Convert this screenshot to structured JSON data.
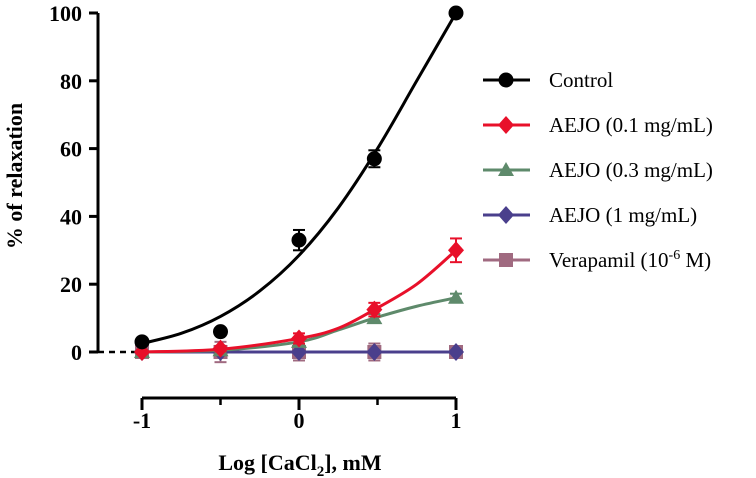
{
  "chart_data": {
    "type": "line",
    "title": "",
    "xlabel": "Log [CaCl2], mM",
    "xlabel_main": "Log [CaCl",
    "xlabel_sub": "2",
    "xlabel_tail": "], mM",
    "ylabel": "% of relaxation",
    "xlim": [
      -1,
      1
    ],
    "ylim": [
      0,
      100
    ],
    "xticks": [
      -1,
      0,
      1
    ],
    "xtick_labels": [
      "-1",
      "0",
      "1"
    ],
    "xminor": [
      -0.5,
      0.5
    ],
    "yticks": [
      0,
      20,
      40,
      60,
      80,
      100
    ],
    "ytick_labels": [
      "0",
      "20",
      "40",
      "60",
      "80",
      "100"
    ],
    "grid": false,
    "legend_position": "right",
    "series": [
      {
        "name": "Control",
        "color": "#000000",
        "marker": "circle",
        "x": [
          -1,
          -0.5,
          0,
          0.48,
          1
        ],
        "y": [
          3,
          6,
          33,
          57,
          100
        ],
        "err": [
          0.8,
          1,
          3,
          2.5,
          0.5
        ],
        "fit": [
          [
            -1,
            2.5
          ],
          [
            -0.75,
            5.5
          ],
          [
            -0.5,
            10.5
          ],
          [
            -0.25,
            18
          ],
          [
            0,
            28.5
          ],
          [
            0.25,
            42.5
          ],
          [
            0.5,
            60
          ],
          [
            0.75,
            80
          ],
          [
            1,
            100
          ]
        ]
      },
      {
        "name": "AEJO (0.1 mg/mL)",
        "color": "#e8102a",
        "marker": "diamond",
        "x": [
          -1,
          -0.5,
          0,
          0.48,
          1
        ],
        "y": [
          0,
          1,
          4,
          12.5,
          30
        ],
        "err": [
          0.5,
          0.8,
          1.5,
          2,
          3.5
        ],
        "fit": [
          [
            -1,
            0
          ],
          [
            -0.5,
            0.8
          ],
          [
            0,
            4
          ],
          [
            0.25,
            7
          ],
          [
            0.48,
            12.5
          ],
          [
            0.75,
            20
          ],
          [
            1,
            30
          ]
        ]
      },
      {
        "name": "AEJO (0.3 mg/mL)",
        "color": "#5e8a6b",
        "marker": "triangle",
        "x": [
          -1,
          -0.5,
          0,
          0.48,
          1
        ],
        "y": [
          0,
          0.5,
          3,
          10,
          16
        ],
        "err": [
          0.5,
          0.5,
          1,
          1.2,
          1.2
        ],
        "fit": [
          [
            -1,
            0
          ],
          [
            -0.5,
            0.5
          ],
          [
            0,
            3
          ],
          [
            0.25,
            6.5
          ],
          [
            0.48,
            10
          ],
          [
            0.75,
            13.5
          ],
          [
            1,
            16
          ]
        ]
      },
      {
        "name": "AEJO (1 mg/mL)",
        "color": "#4a3f8c",
        "marker": "diamond",
        "x": [
          -1,
          -0.5,
          0,
          0.48,
          1
        ],
        "y": [
          0,
          0,
          0,
          0,
          0
        ],
        "err": [
          0.3,
          0.3,
          0.3,
          0.3,
          0.3
        ],
        "fit": [
          [
            -1,
            0
          ],
          [
            1,
            0
          ]
        ]
      },
      {
        "name": "Verapamil (10-6 M)",
        "color": "#a06a80",
        "marker": "square",
        "x": [
          -1,
          -0.5,
          0,
          0.48,
          1
        ],
        "y": [
          0,
          0,
          0,
          0,
          0
        ],
        "err": [
          0.5,
          3,
          2.5,
          2.5,
          0.5
        ],
        "fit": [
          [
            -1,
            0
          ],
          [
            1,
            0
          ]
        ]
      }
    ],
    "legend": {
      "items": [
        {
          "base": "Control",
          "sup": "",
          "tail": ""
        },
        {
          "base": "AEJO (0.1 mg/mL)",
          "sup": "",
          "tail": ""
        },
        {
          "base": "AEJO (0.3 mg/mL)",
          "sup": "",
          "tail": ""
        },
        {
          "base": "AEJO (1 mg/mL)",
          "sup": "",
          "tail": ""
        },
        {
          "base": "Verapamil (10",
          "sup": "-6",
          "tail": " M)"
        }
      ]
    }
  }
}
